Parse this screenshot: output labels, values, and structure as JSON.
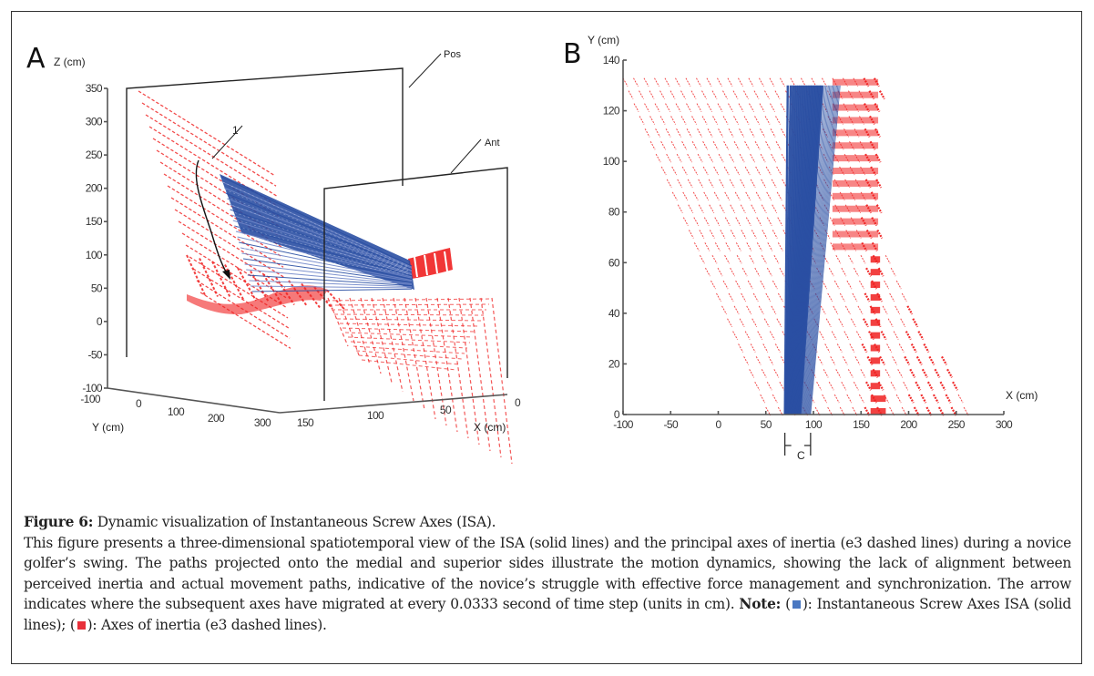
{
  "figure": {
    "panel_a_letter": "A",
    "panel_b_letter": "B"
  },
  "colors": {
    "isa_blue": "#2a4fa3",
    "inertia_red": "#f02020",
    "axis_gray": "#555555"
  },
  "caption": {
    "title_label": "Figure 6:",
    "title_text": " Dynamic visualization of Instantaneous Screw Axes (ISA).",
    "body_text": "This figure presents a three-dimensional spatiotemporal view of the ISA (solid lines) and the principal axes of inertia (e3 dashed lines) during a novice golfer’s swing. The paths projected onto the medial and superior sides illustrate the motion dynamics, showing the lack of alignment between perceived inertia and actual movement paths, indicative of the novice’s struggle with effective force management and synchronization. The arrow indicates where the subsequent axes have migrated at every 0.0333 second of time step (units in cm). ",
    "note_label": "Note:",
    "legend_open1": " (",
    "legend_isa": "): Instantaneous Screw Axes ISA (solid lines); (",
    "legend_inertia": "): Axes of inertia (e3 dashed lines)."
  },
  "chart_data": [
    {
      "type": "scatter",
      "panel": "A",
      "title": "3D spatiotemporal view of ISA and principal axes of inertia",
      "zlabel": "Z (cm)",
      "ylabel": "Y (cm)",
      "xlabel": "X (cm)",
      "z_ticks": [
        "350",
        "300",
        "250",
        "200",
        "150",
        "100",
        "50",
        "0",
        "-50",
        "-100"
      ],
      "y_ticks": [
        "-100",
        "0",
        "100",
        "200",
        "300"
      ],
      "x_ticks": [
        "150",
        "100",
        "50",
        "0"
      ],
      "zlim": [
        -100,
        350
      ],
      "ylim": [
        -100,
        300
      ],
      "xlim": [
        150,
        0
      ],
      "annotations": [
        "Pos",
        "Ant",
        "1"
      ],
      "series": [
        {
          "name": "Instantaneous Screw Axes ISA (solid lines)",
          "style": "solid",
          "color": "#2a4fa3"
        },
        {
          "name": "Axes of inertia (e3 dashed lines)",
          "style": "dashed",
          "color": "#f02020"
        }
      ]
    },
    {
      "type": "line",
      "panel": "B",
      "title": "Projection onto superior side",
      "xlabel": "X (cm)",
      "ylabel": "Y (cm)",
      "x_ticks": [
        "-100",
        "-50",
        "0",
        "50",
        "100",
        "150",
        "200",
        "250",
        "300"
      ],
      "y_ticks": [
        "0",
        "20",
        "40",
        "60",
        "80",
        "100",
        "120",
        "140"
      ],
      "xlim": [
        -100,
        300
      ],
      "ylim": [
        0,
        140
      ],
      "annotation": "C",
      "annotation_range_x": [
        70,
        97
      ],
      "series": [
        {
          "name": "ISA (solid lines)",
          "style": "solid",
          "color": "#2a4fa3",
          "x_at_y0_range": [
            70,
            97
          ],
          "x_at_y130_range": [
            73,
            128
          ]
        },
        {
          "name": "Axes of inertia e3 (dashed lines)",
          "style": "dashed",
          "color": "#f02020",
          "rows_y": [
            0,
            5,
            10,
            15,
            20,
            25,
            30,
            35,
            40,
            45,
            50,
            55,
            60,
            65,
            70,
            75,
            80,
            85,
            90,
            95,
            100,
            105,
            110,
            115,
            120,
            125,
            130
          ],
          "left_edge_x_at_y130": -100,
          "left_edge_x_at_y0": 50,
          "right_edge_x_at_y130": 170,
          "right_edge_x_at_y0": 265
        }
      ]
    }
  ]
}
